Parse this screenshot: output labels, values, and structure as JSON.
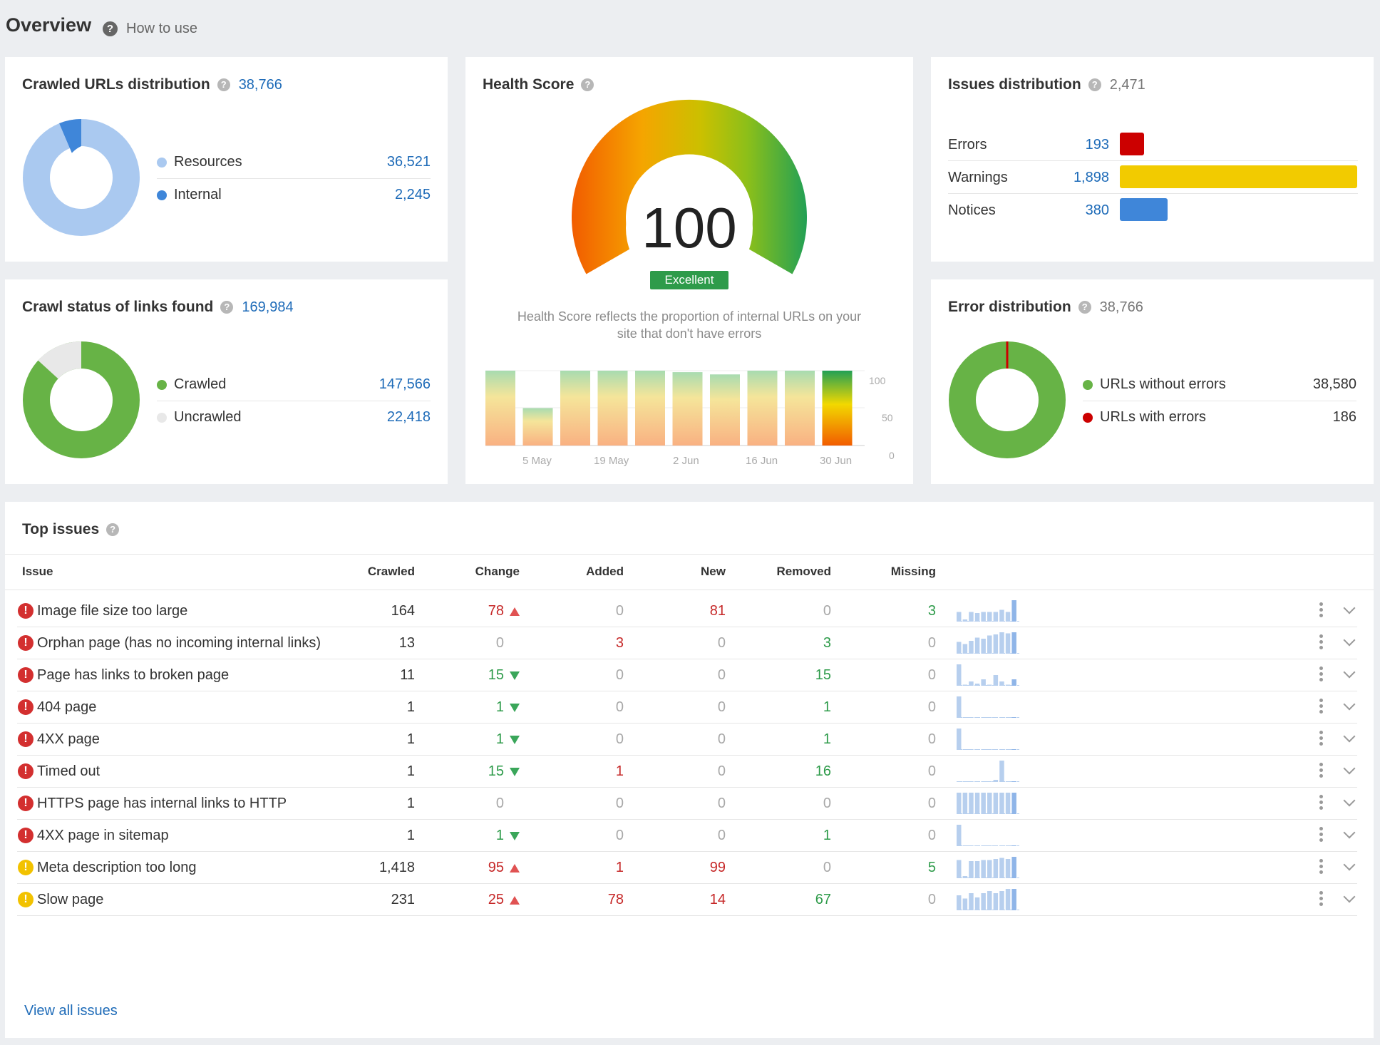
{
  "header": {
    "title": "Overview",
    "how_to_use": "How to use"
  },
  "crawled_urls": {
    "title": "Crawled URLs distribution",
    "total": "38,766",
    "items": [
      {
        "label": "Resources",
        "value": "36,521",
        "color": "#aac9f0"
      },
      {
        "label": "Internal",
        "value": "2,245",
        "color": "#3f86d9"
      }
    ]
  },
  "crawl_status": {
    "title": "Crawl status of links found",
    "total": "169,984",
    "items": [
      {
        "label": "Crawled",
        "value": "147,566",
        "color": "#67b346"
      },
      {
        "label": "Uncrawled",
        "value": "22,418",
        "color": "#e8e8e8"
      }
    ]
  },
  "health": {
    "title": "Health Score",
    "score": "100",
    "badge": "Excellent",
    "description_line1": "Health Score reflects the proportion of internal URLs on your",
    "description_line2": "site that don't have errors",
    "y_ticks": [
      "100",
      "50",
      "0"
    ],
    "x_labels": [
      "5 May",
      "19 May",
      "2 Jun",
      "16 Jun",
      "30 Jun"
    ]
  },
  "issues_dist": {
    "title": "Issues distribution",
    "total": "2,471",
    "items": [
      {
        "label": "Errors",
        "value": "193",
        "color": "#cc0000"
      },
      {
        "label": "Warnings",
        "value": "1,898",
        "color": "#f2cb00"
      },
      {
        "label": "Notices",
        "value": "380",
        "color": "#3f86d9"
      }
    ]
  },
  "error_dist": {
    "title": "Error distribution",
    "total": "38,766",
    "items": [
      {
        "label": "URLs without errors",
        "value": "38,580",
        "color": "#67b346"
      },
      {
        "label": "URLs with errors",
        "value": "186",
        "color": "#cc0000"
      }
    ]
  },
  "top_issues": {
    "title": "Top issues",
    "columns": [
      "Issue",
      "Crawled",
      "Change",
      "Added",
      "New",
      "Removed",
      "Missing"
    ],
    "rows": [
      {
        "issue": "Image file size too large",
        "crawled": "164",
        "change": "78",
        "added": "0",
        "new": "81",
        "removed": "0",
        "missing": "3"
      },
      {
        "issue": "Orphan page (has no incoming internal links)",
        "crawled": "13",
        "change": "0",
        "added": "3",
        "new": "0",
        "removed": "3",
        "missing": "0"
      },
      {
        "issue": "Page has links to broken page",
        "crawled": "11",
        "change": "15",
        "added": "0",
        "new": "0",
        "removed": "15",
        "missing": "0"
      },
      {
        "issue": "404 page",
        "crawled": "1",
        "change": "1",
        "added": "0",
        "new": "0",
        "removed": "1",
        "missing": "0"
      },
      {
        "issue": "4XX page",
        "crawled": "1",
        "change": "1",
        "added": "0",
        "new": "0",
        "removed": "1",
        "missing": "0"
      },
      {
        "issue": "Timed out",
        "crawled": "1",
        "change": "15",
        "added": "1",
        "new": "0",
        "removed": "16",
        "missing": "0"
      },
      {
        "issue": "HTTPS page has internal links to HTTP",
        "crawled": "1",
        "change": "0",
        "added": "0",
        "new": "0",
        "removed": "0",
        "missing": "0"
      },
      {
        "issue": "4XX page in sitemap",
        "crawled": "1",
        "change": "1",
        "added": "0",
        "new": "0",
        "removed": "1",
        "missing": "0"
      },
      {
        "issue": "Meta description too long",
        "crawled": "1,418",
        "change": "95",
        "added": "1",
        "new": "99",
        "removed": "0",
        "missing": "5"
      },
      {
        "issue": "Slow page",
        "crawled": "231",
        "change": "25",
        "added": "78",
        "new": "14",
        "removed": "67",
        "missing": "0"
      }
    ],
    "view_all": "View all issues"
  }
}
